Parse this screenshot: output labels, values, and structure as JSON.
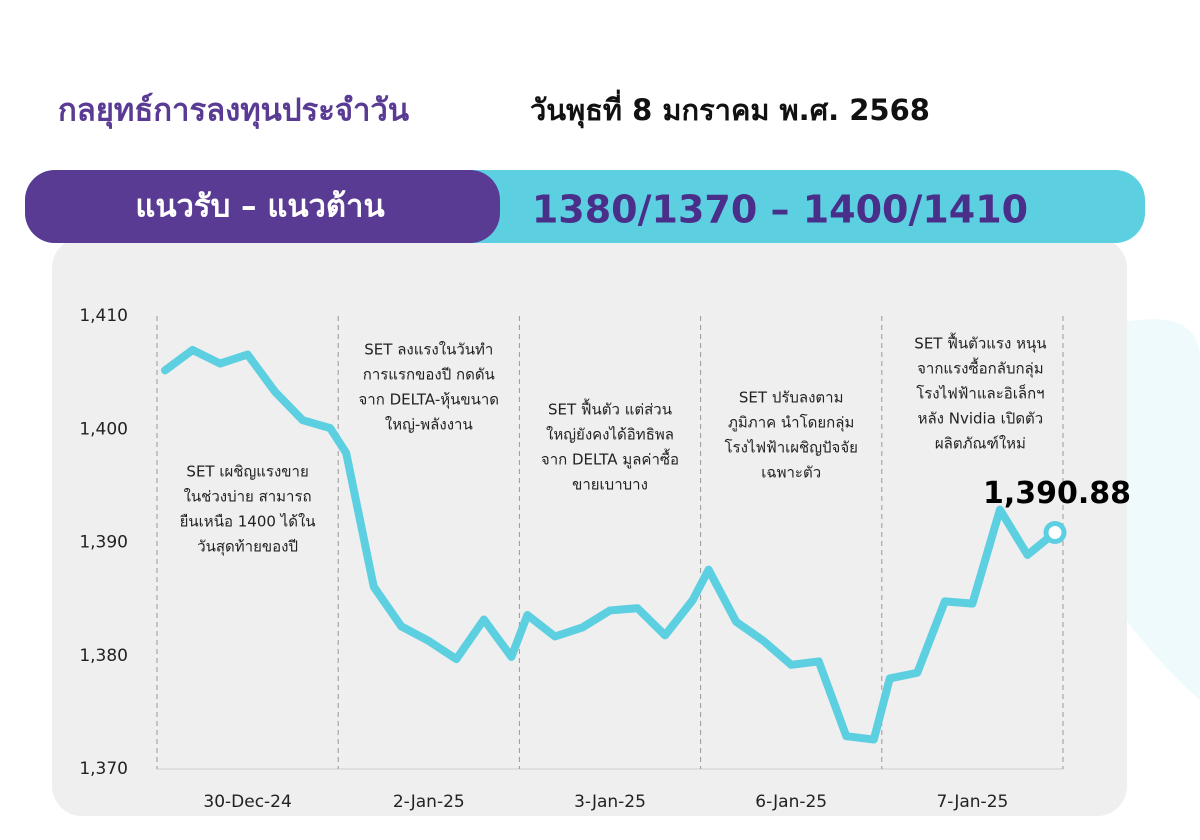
{
  "header": {
    "title": "กลยุทธ์การลงทุนประจำวัน",
    "date": "วันพุธที่ 8 มกราคม พ.ศ. 2568"
  },
  "banner": {
    "label": "แนวรับ – แนวต้าน",
    "value": "1380/1370 – 1400/1410"
  },
  "chart_data": {
    "type": "line",
    "categories": [
      "30-Dec-24",
      "2-Jan-25",
      "3-Jan-25",
      "6-Jan-25",
      "7-Jan-25"
    ],
    "annotations": [
      [
        "SET เผชิญแรงขาย",
        "ในช่วงบ่าย สามารถ",
        "ยืนเหนือ 1400 ได้ใน",
        "วันสุดท้ายของปี"
      ],
      [
        "SET ลงแรงในวันทำ",
        "การแรกของปี กดดัน",
        "จาก DELTA-หุ้นขนาด",
        "ใหญ่-พลังงาน"
      ],
      [
        "SET ฟื้นตัว แต่ส่วน",
        "ใหญ่ยังคงได้อิทธิพล",
        "จาก DELTA มูลค่าซื้อ",
        "ขายเบาบาง"
      ],
      [
        "SET ปรับลงตาม",
        "ภูมิภาค นำโดยกลุ่ม",
        "โรงไฟฟ้าเผชิญปัจจัย",
        "เฉพาะตัว"
      ],
      [
        "SET ฟื้นตัวแรง หนุน",
        "จากแรงซื้อกลับกลุ่ม",
        "โรงไฟฟ้าและอิเล็กฯ",
        "หลัง Nvidia เปิดตัว",
        "ผลิตภัณฑ์ใหม่"
      ]
    ],
    "color": "#5ccfe0",
    "values": [
      [
        1405.2,
        1407.0,
        1405.8,
        1406.6,
        1403.3,
        1400.8,
        1400.1
      ],
      [
        1397.9,
        1386.1,
        1382.6,
        1381.3,
        1379.7,
        1383.2,
        1379.9
      ],
      [
        1383.6,
        1381.7,
        1382.5,
        1384.0,
        1384.2,
        1381.8,
        1384.9
      ],
      [
        1387.6,
        1383.0,
        1381.3,
        1379.2,
        1379.5,
        1372.9,
        1372.6
      ],
      [
        1378.0,
        1378.5,
        1384.8,
        1384.6,
        1392.9,
        1388.9,
        1390.88
      ]
    ],
    "last_value_label": "1,390.88",
    "ylim": [
      1370,
      1410
    ],
    "yticks": [
      {
        "value": 1370,
        "label": "1,370"
      },
      {
        "value": 1380,
        "label": "1,380"
      },
      {
        "value": 1390,
        "label": "1,390"
      },
      {
        "value": 1400,
        "label": "1,400"
      },
      {
        "value": 1410,
        "label": "1,410"
      }
    ]
  }
}
